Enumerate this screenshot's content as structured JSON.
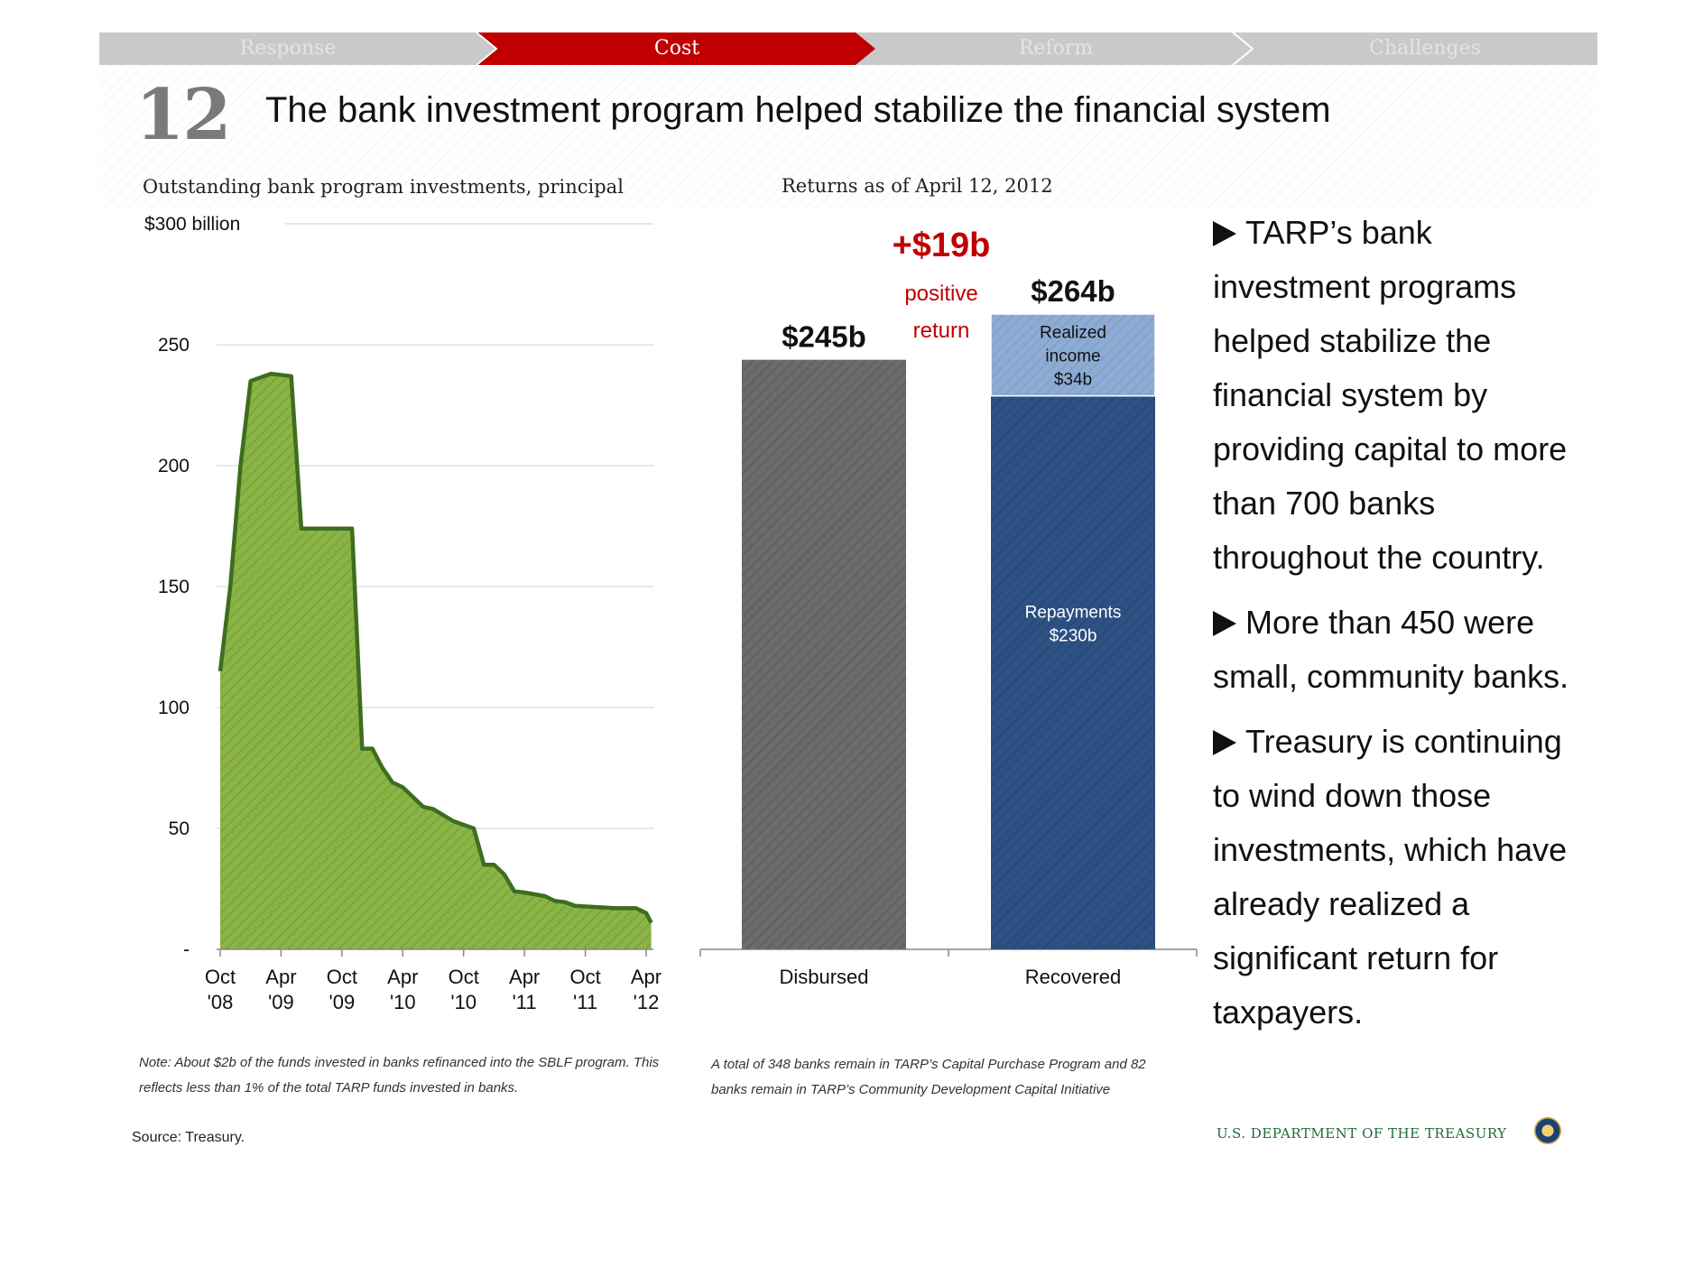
{
  "nav": {
    "tabs": [
      {
        "label": "Response",
        "active": false
      },
      {
        "label": "Cost",
        "active": true
      },
      {
        "label": "Reform",
        "active": false
      },
      {
        "label": "Challenges",
        "active": false
      }
    ],
    "active_color": "#c00000",
    "inactive_color": "#c9c9c9"
  },
  "slide": {
    "number": "12",
    "title": "The bank investment program helped stabilize the financial system"
  },
  "left_panel": {
    "title": "Outstanding bank program investments, principal",
    "unit_label": "$300 billion"
  },
  "right_panel": {
    "title": "Returns as of April 12, 2012"
  },
  "chart_data": [
    {
      "type": "area",
      "title": "Outstanding bank program investments, principal",
      "ylabel": "$ billion",
      "ylim": [
        0,
        300
      ],
      "yticks": [
        {
          "value": 300,
          "label": "$300 billion"
        },
        {
          "value": 250,
          "label": "250"
        },
        {
          "value": 200,
          "label": "200"
        },
        {
          "value": 150,
          "label": "150"
        },
        {
          "value": 100,
          "label": "100"
        },
        {
          "value": 50,
          "label": "50"
        },
        {
          "value": 0,
          "label": "-"
        }
      ],
      "xlim": [
        0,
        42
      ],
      "xticks": [
        {
          "month": 0,
          "line1": "Oct",
          "line2": "'08"
        },
        {
          "month": 6,
          "line1": "Apr",
          "line2": "'09"
        },
        {
          "month": 12,
          "line1": "Oct",
          "line2": "'09"
        },
        {
          "month": 18,
          "line1": "Apr",
          "line2": "'10"
        },
        {
          "month": 24,
          "line1": "Oct",
          "line2": "'10"
        },
        {
          "month": 30,
          "line1": "Apr",
          "line2": "'11"
        },
        {
          "month": 36,
          "line1": "Oct",
          "line2": "'11"
        },
        {
          "month": 42,
          "line1": "Apr",
          "line2": "'12"
        }
      ],
      "series": [
        {
          "name": "Outstanding principal",
          "color": "#8ab446",
          "stroke": "#3d6d1f",
          "points": [
            [
              0,
              115
            ],
            [
              1,
              150
            ],
            [
              2,
              200
            ],
            [
              3,
              235
            ],
            [
              5,
              238
            ],
            [
              7,
              237
            ],
            [
              8,
              174
            ],
            [
              9,
              174
            ],
            [
              12,
              174
            ],
            [
              13,
              174
            ],
            [
              14,
              83
            ],
            [
              15,
              83
            ],
            [
              16,
              75
            ],
            [
              17,
              69
            ],
            [
              18,
              67
            ],
            [
              20,
              59
            ],
            [
              21,
              58
            ],
            [
              23,
              53
            ],
            [
              25,
              50
            ],
            [
              26,
              35
            ],
            [
              27,
              35
            ],
            [
              28,
              31
            ],
            [
              29,
              24
            ],
            [
              30,
              23.5
            ],
            [
              32,
              22
            ],
            [
              33,
              20
            ],
            [
              34,
              19.5
            ],
            [
              35,
              18
            ],
            [
              37,
              17.5
            ],
            [
              39,
              17
            ],
            [
              41,
              17
            ],
            [
              42,
              15
            ],
            [
              42.5,
              11
            ]
          ]
        }
      ]
    },
    {
      "type": "bar",
      "title": "Returns as of April 12, 2012",
      "categories": [
        "Disbursed",
        "Recovered"
      ],
      "ylim": [
        0,
        264
      ],
      "series": [
        {
          "name": "Disbursed",
          "values": [
            245,
            0
          ],
          "color": "#6b6b6b"
        },
        {
          "name": "Repayments",
          "values": [
            0,
            230
          ],
          "color": "#2e5184",
          "label_lines": [
            "Repayments",
            "$230b"
          ]
        },
        {
          "name": "Realized income",
          "values": [
            0,
            34
          ],
          "color": "#8eacd3",
          "label_lines": [
            "Realized",
            "income",
            "$34b"
          ]
        }
      ],
      "totals": [
        "$245b",
        "$264b"
      ],
      "annotation": {
        "value": "+$19b",
        "line1": "positive",
        "line2": "return",
        "color": "#c00000"
      }
    }
  ],
  "bullets": [
    "TARP’s bank investment programs helped stabilize the financial system by providing capital to more than 700 banks throughout the country.",
    "More than 450 were small, community banks.",
    "Treasury is continuing to wind down those investments, which have already realized a significant return for taxpayers."
  ],
  "notes": {
    "left": "Note: About $2b of the funds invested in banks refinanced into the SBLF program. This reflects less than 1% of the total TARP funds invested in banks.",
    "right": "A total of 348 banks remain in TARP’s Capital Purchase Program and 82 banks remain in TARP’s Community Development Capital Initiative",
    "source": "Source: Treasury."
  },
  "footer": {
    "department": "U.S. DEPARTMENT OF THE TREASURY",
    "seal_icon": "treasury-seal-icon"
  }
}
